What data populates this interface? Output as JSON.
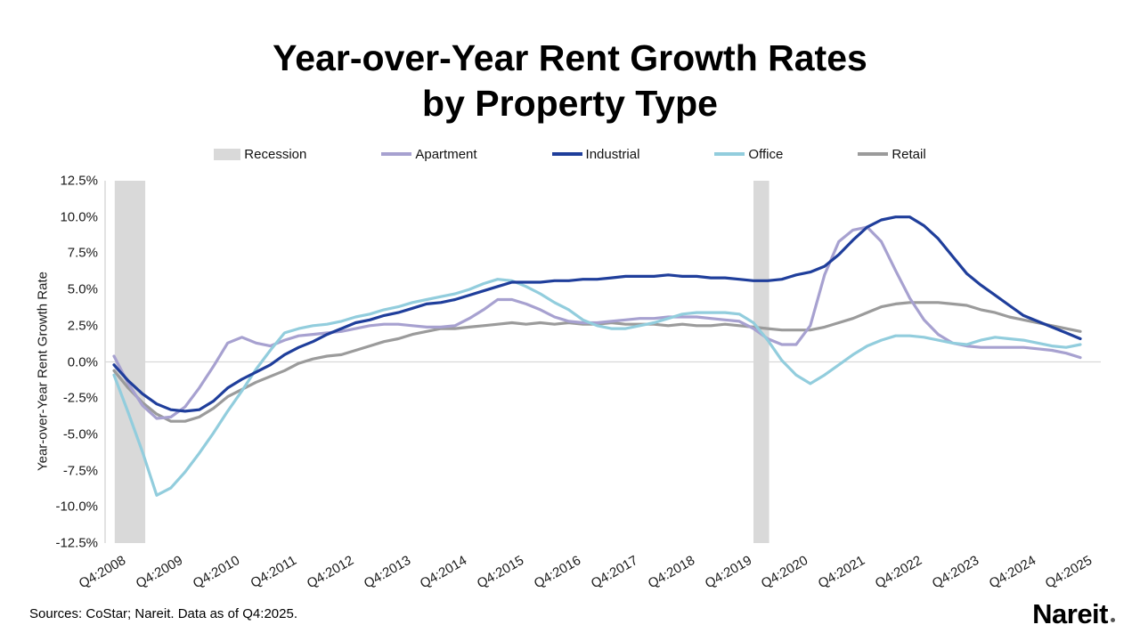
{
  "title": {
    "line1": "Year-over-Year Rent Growth Rates",
    "line2": "by Property Type"
  },
  "legend": [
    {
      "label": "Recession",
      "marker": "box",
      "color": "#d9d9d9"
    },
    {
      "label": "Apartment",
      "marker": "line",
      "color": "#a7a1d0"
    },
    {
      "label": "Industrial",
      "marker": "line",
      "color": "#1f3e9b"
    },
    {
      "label": "Office",
      "marker": "line",
      "color": "#92cddd"
    },
    {
      "label": "Retail",
      "marker": "line",
      "color": "#9b9b9b"
    }
  ],
  "footer": {
    "source_note": "Sources: CoStar; Nareit. Data as of Q4:2025.",
    "brand": "Nareit"
  },
  "chart_data": {
    "type": "line",
    "title": "Year-over-Year Rent Growth Rates by Property Type",
    "xlabel": "",
    "ylabel": "Year-over-Year Rent Growth Rate",
    "ylim": [
      -12.5,
      12.5
    ],
    "y_tick_step": 2.5,
    "y_tick_labels": [
      "12.5%",
      "10.0%",
      "7.5%",
      "5.0%",
      "2.5%",
      "0.0%",
      "-2.5%",
      "-5.0%",
      "-7.5%",
      "-10.0%",
      "-12.5%"
    ],
    "x_tick_labels": [
      "Q4:2008",
      "Q4:2009",
      "Q4:2010",
      "Q4:2011",
      "Q4:2012",
      "Q4:2013",
      "Q4:2014",
      "Q4:2015",
      "Q4:2016",
      "Q4:2017",
      "Q4:2018",
      "Q4:2019",
      "Q4:2020",
      "Q4:2021",
      "Q4:2022",
      "Q4:2023",
      "Q4:2024",
      "Q4:2025"
    ],
    "x_frequency": "quarterly",
    "points_per_year": 4,
    "x_start": "Q4:2008",
    "x_end": "Q4:2025",
    "grid": "zero-line only",
    "legend_position": "top",
    "recession_color": "#d9d9d9",
    "gridline_color": "#d9d9d9",
    "recession_bands": [
      {
        "label": "Great Recession",
        "from_index": 0.05,
        "to_index": 2.2
      },
      {
        "label": "COVID-19 Recession",
        "from_index": 45,
        "to_index": 46.1
      }
    ],
    "series": [
      {
        "name": "Apartment",
        "color": "#a7a1d0",
        "values": [
          0.4,
          -1.5,
          -3.0,
          -3.9,
          -3.8,
          -3.1,
          -1.8,
          -0.3,
          1.3,
          1.7,
          1.3,
          1.1,
          1.5,
          1.8,
          1.9,
          2.0,
          2.1,
          2.3,
          2.5,
          2.6,
          2.6,
          2.5,
          2.4,
          2.4,
          2.5,
          3.0,
          3.6,
          4.3,
          4.3,
          4.0,
          3.6,
          3.1,
          2.8,
          2.7,
          2.7,
          2.8,
          2.9,
          3.0,
          3.0,
          3.1,
          3.1,
          3.1,
          3.0,
          2.9,
          2.8,
          2.3,
          1.6,
          1.2,
          1.2,
          2.5,
          6.0,
          8.3,
          9.1,
          9.3,
          8.3,
          6.3,
          4.4,
          2.9,
          1.9,
          1.3,
          1.1,
          1.0,
          1.0,
          1.0,
          1.0,
          0.9,
          0.8,
          0.6,
          0.3
        ]
      },
      {
        "name": "Industrial",
        "color": "#1f3e9b",
        "values": [
          -0.2,
          -1.3,
          -2.2,
          -2.9,
          -3.3,
          -3.4,
          -3.3,
          -2.7,
          -1.8,
          -1.2,
          -0.7,
          -0.2,
          0.5,
          1.0,
          1.4,
          1.9,
          2.3,
          2.7,
          2.9,
          3.2,
          3.4,
          3.7,
          4.0,
          4.1,
          4.3,
          4.6,
          4.9,
          5.2,
          5.5,
          5.5,
          5.5,
          5.6,
          5.6,
          5.7,
          5.7,
          5.8,
          5.9,
          5.9,
          5.9,
          6.0,
          5.9,
          5.9,
          5.8,
          5.8,
          5.7,
          5.6,
          5.6,
          5.7,
          6.0,
          6.2,
          6.6,
          7.4,
          8.4,
          9.3,
          9.8,
          10.0,
          10.0,
          9.4,
          8.5,
          7.3,
          6.1,
          5.3,
          4.6,
          3.9,
          3.2,
          2.8,
          2.4,
          2.0,
          1.6
        ]
      },
      {
        "name": "Office",
        "color": "#92cddd",
        "values": [
          -0.9,
          -3.5,
          -6.2,
          -9.2,
          -8.7,
          -7.6,
          -6.3,
          -4.9,
          -3.4,
          -2.0,
          -0.5,
          0.8,
          2.0,
          2.3,
          2.5,
          2.6,
          2.8,
          3.1,
          3.3,
          3.6,
          3.8,
          4.1,
          4.3,
          4.5,
          4.7,
          5.0,
          5.4,
          5.7,
          5.6,
          5.2,
          4.7,
          4.1,
          3.6,
          2.9,
          2.5,
          2.3,
          2.3,
          2.5,
          2.7,
          3.0,
          3.3,
          3.4,
          3.4,
          3.4,
          3.3,
          2.7,
          1.5,
          0.1,
          -0.9,
          -1.5,
          -0.9,
          -0.2,
          0.5,
          1.1,
          1.5,
          1.8,
          1.8,
          1.7,
          1.5,
          1.3,
          1.2,
          1.5,
          1.7,
          1.6,
          1.5,
          1.3,
          1.1,
          1.0,
          1.2
        ]
      },
      {
        "name": "Retail",
        "color": "#9b9b9b",
        "values": [
          -0.6,
          -1.8,
          -2.8,
          -3.6,
          -4.1,
          -4.1,
          -3.8,
          -3.2,
          -2.4,
          -1.9,
          -1.4,
          -1.0,
          -0.6,
          -0.1,
          0.2,
          0.4,
          0.5,
          0.8,
          1.1,
          1.4,
          1.6,
          1.9,
          2.1,
          2.3,
          2.3,
          2.4,
          2.5,
          2.6,
          2.7,
          2.6,
          2.7,
          2.6,
          2.7,
          2.6,
          2.6,
          2.7,
          2.6,
          2.6,
          2.6,
          2.5,
          2.6,
          2.5,
          2.5,
          2.6,
          2.5,
          2.4,
          2.3,
          2.2,
          2.2,
          2.2,
          2.4,
          2.7,
          3.0,
          3.4,
          3.8,
          4.0,
          4.1,
          4.1,
          4.1,
          4.0,
          3.9,
          3.6,
          3.4,
          3.1,
          2.9,
          2.7,
          2.5,
          2.3,
          2.1
        ]
      }
    ]
  }
}
